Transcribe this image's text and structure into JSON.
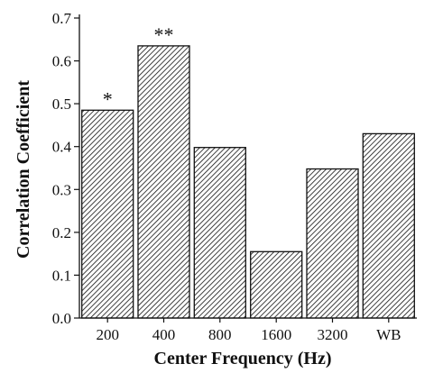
{
  "chart_data": {
    "type": "bar",
    "categories": [
      "200",
      "400",
      "800",
      "1600",
      "3200",
      "WB"
    ],
    "values": [
      0.485,
      0.635,
      0.398,
      0.155,
      0.348,
      0.43
    ],
    "annotations": [
      "*",
      "**",
      "",
      "",
      "",
      ""
    ],
    "xlabel": "Center Frequency (Hz)",
    "ylabel": "Correlation Coefficient",
    "ylim": [
      0.0,
      0.7
    ],
    "yticks": [
      "0.0",
      "0.1",
      "0.2",
      "0.3",
      "0.4",
      "0.5",
      "0.6",
      "0.7"
    ],
    "ytick_values": [
      0.0,
      0.1,
      0.2,
      0.3,
      0.4,
      0.5,
      0.6,
      0.7
    ],
    "grid": false,
    "bar_fill": "hatched",
    "colors": {
      "bar_stroke": "#111111",
      "hatch": "#111111",
      "background": "#ffffff"
    }
  }
}
